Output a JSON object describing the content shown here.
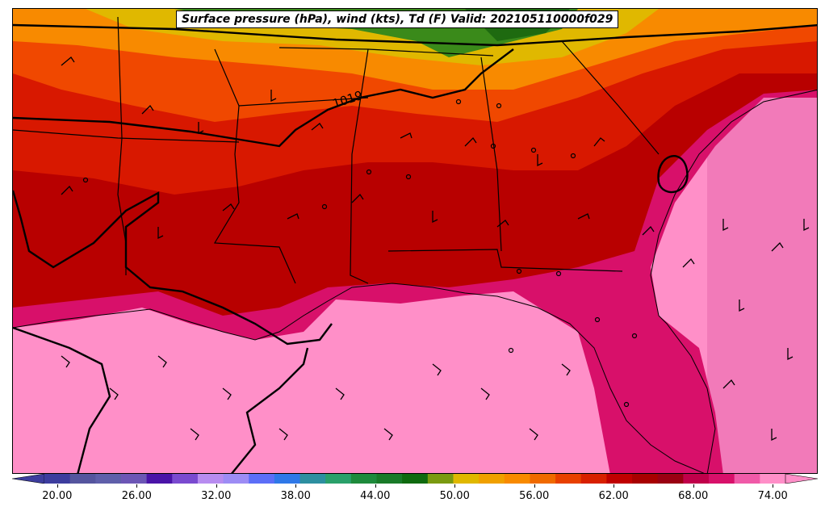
{
  "title": "Surface pressure (hPa), wind (kts), Td (F) Valid: 202105110000f029",
  "isobar_label": "1019",
  "colorbar": {
    "ticks": [
      "20.00",
      "26.00",
      "32.00",
      "38.00",
      "44.00",
      "50.00",
      "56.00",
      "62.00",
      "68.00",
      "74.00"
    ],
    "colors": [
      "#3d3d9e",
      "#55559e",
      "#5f5faa",
      "#6c56b5",
      "#4a14a8",
      "#7a4ad0",
      "#b88cf0",
      "#9d8cf5",
      "#5c6ef7",
      "#2f78e8",
      "#2d8fa0",
      "#2aa06a",
      "#1e8a3c",
      "#197a28",
      "#0f6a0f",
      "#7a9a10",
      "#e0b800",
      "#f0a000",
      "#f88a00",
      "#f06a00",
      "#e84000",
      "#d82000",
      "#c00000",
      "#a80000",
      "#9a0012",
      "#c0004a",
      "#d8106a",
      "#f05aa8",
      "#ff8fc8"
    ]
  },
  "colors": {
    "gulf": "#ff8fc8",
    "coastal_pink": "#e0107a",
    "deep_red": "#b80000",
    "red": "#d81800",
    "orange_red": "#f04800",
    "orange": "#f88a00",
    "gold": "#e0b800",
    "green": "#3a8a1a"
  }
}
